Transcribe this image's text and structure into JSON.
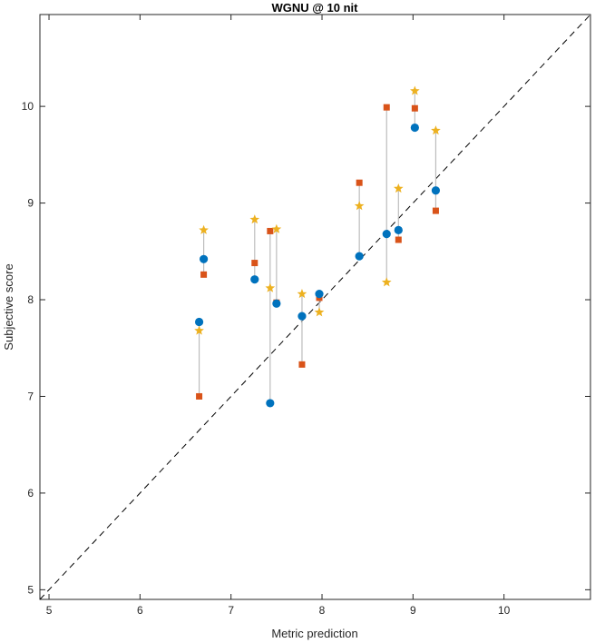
{
  "chart_data": {
    "type": "scatter",
    "title": "WGNU @ 10 nit",
    "xlabel": "Metric prediction",
    "ylabel": "Subjective score",
    "xlim": [
      4.9,
      10.95
    ],
    "ylim": [
      4.9,
      10.95
    ],
    "xticks": [
      "5",
      "6",
      "7",
      "8",
      "9",
      "10"
    ],
    "yticks": [
      "5",
      "6",
      "7",
      "8",
      "9",
      "10"
    ],
    "grid": false,
    "legend": "none",
    "reference_line": {
      "style": "dashed",
      "from": [
        4.9,
        4.9
      ],
      "to": [
        10.95,
        10.95
      ],
      "color": "#000000"
    },
    "connector_color": "#bdbdbd",
    "marker_styles": [
      {
        "marker": "circle",
        "color": "#0072BD"
      },
      {
        "marker": "square",
        "color": "#D95319"
      },
      {
        "marker": "star",
        "color": "#EDB120"
      }
    ],
    "groups": [
      {
        "x": 6.65,
        "circle": 7.77,
        "square": 7.0,
        "star": 7.68
      },
      {
        "x": 6.7,
        "circle": 8.42,
        "square": 8.26,
        "star": 8.72
      },
      {
        "x": 7.26,
        "circle": 8.21,
        "square": 8.38,
        "star": 8.83
      },
      {
        "x": 7.43,
        "circle": 6.93,
        "square": 8.71,
        "star": 8.12
      },
      {
        "x": 7.5,
        "circle": 7.96,
        "square": 7.97,
        "star": 8.73
      },
      {
        "x": 7.78,
        "circle": 7.83,
        "square": 7.33,
        "star": 8.06
      },
      {
        "x": 7.97,
        "circle": 8.06,
        "square": 8.02,
        "star": 7.87
      },
      {
        "x": 8.41,
        "circle": 8.45,
        "square": 9.21,
        "star": 8.97
      },
      {
        "x": 8.71,
        "circle": 8.68,
        "square": 9.99,
        "star": 8.18
      },
      {
        "x": 8.84,
        "circle": 8.72,
        "square": 8.62,
        "star": 9.15
      },
      {
        "x": 9.02,
        "circle": 9.78,
        "square": 9.98,
        "star": 10.16
      },
      {
        "x": 9.25,
        "circle": 9.13,
        "square": 8.92,
        "star": 9.75
      }
    ]
  }
}
